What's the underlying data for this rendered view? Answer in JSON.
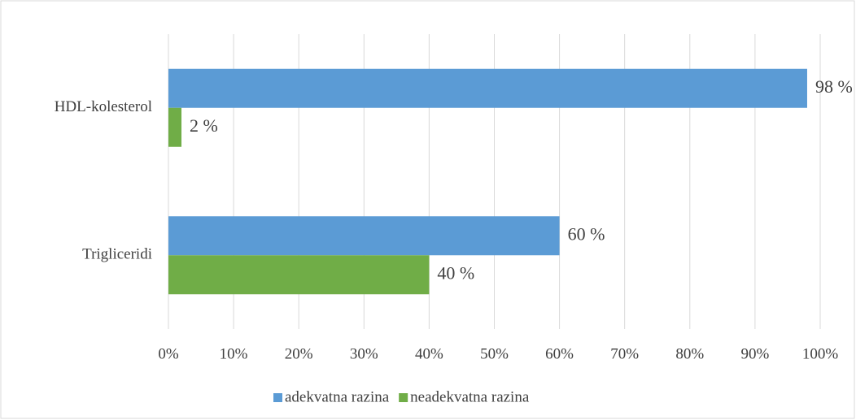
{
  "chart_data": {
    "type": "bar",
    "orientation": "horizontal",
    "categories": [
      "HDL-kolesterol",
      "Trigliceridi"
    ],
    "series": [
      {
        "name": "adekvatna razina",
        "color": "#5b9bd5",
        "values": [
          98,
          60
        ],
        "value_labels": [
          "98 %",
          "60 %"
        ]
      },
      {
        "name": "neadekvatna razina",
        "color": "#70ad47",
        "values": [
          2,
          40
        ],
        "value_labels": [
          "2 %",
          "40 %"
        ]
      }
    ],
    "xlim": [
      0,
      100
    ],
    "xticks": [
      {
        "value": 0,
        "label": "0%"
      },
      {
        "value": 10,
        "label": "10%"
      },
      {
        "value": 20,
        "label": "20%"
      },
      {
        "value": 30,
        "label": "30%"
      },
      {
        "value": 40,
        "label": "40%"
      },
      {
        "value": 50,
        "label": "50%"
      },
      {
        "value": 60,
        "label": "60%"
      },
      {
        "value": 70,
        "label": "70%"
      },
      {
        "value": 80,
        "label": "80%"
      },
      {
        "value": 90,
        "label": "90%"
      },
      {
        "value": 100,
        "label": "100%"
      }
    ],
    "grid": true,
    "legend": "bottom"
  }
}
